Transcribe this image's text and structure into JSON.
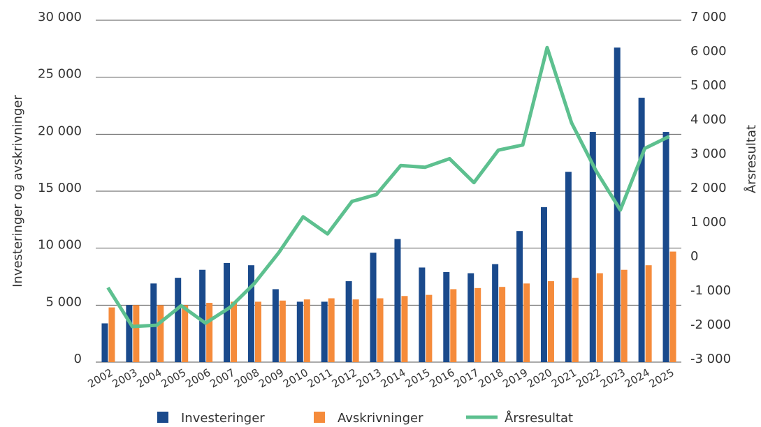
{
  "chart_data": {
    "type": "bar_line",
    "categories": [
      "2002",
      "2003",
      "2004",
      "2005",
      "2006",
      "2007",
      "2008",
      "2009",
      "2010",
      "2011",
      "2012",
      "2013",
      "2014",
      "2015",
      "2016",
      "2017",
      "2018",
      "2019",
      "2020",
      "2021",
      "2022",
      "2023",
      "2024",
      "2025"
    ],
    "series": [
      {
        "name": "Investeringer",
        "color": "#1a4a8c",
        "type": "bar",
        "values": [
          3400,
          5000,
          6900,
          7400,
          8100,
          8700,
          8500,
          6400,
          5300,
          5300,
          7100,
          9600,
          10800,
          8300,
          7900,
          7800,
          8600,
          11500,
          13600,
          16700,
          20200,
          27600,
          23200,
          20200
        ]
      },
      {
        "name": "Avskrivninger",
        "color": "#f58b3b",
        "type": "bar",
        "values": [
          4800,
          5000,
          5000,
          5000,
          5200,
          5300,
          5300,
          5400,
          5500,
          5600,
          5500,
          5600,
          5800,
          5900,
          6400,
          6500,
          6600,
          6900,
          7100,
          7400,
          7800,
          8100,
          8500,
          9700
        ]
      },
      {
        "name": "Årsresultat",
        "color": "#5dc08f",
        "type": "line",
        "axis": "y2",
        "values": [
          -820,
          -1960,
          -1920,
          -1350,
          -1860,
          -1400,
          -700,
          200,
          1250,
          750,
          1700,
          1900,
          2750,
          2700,
          2950,
          2250,
          3200,
          3350,
          6200,
          4000,
          2600,
          1450,
          3250,
          3600
        ]
      }
    ],
    "y_label": "Investeringer og avskrivninger",
    "y2_label": "Årsresultat",
    "ylim": [
      0,
      30000
    ],
    "yticks": [
      0,
      {
        "value": 5000,
        "label": "5 000"
      },
      {
        "value": 10000,
        "label": "10 000"
      },
      {
        "value": 15000,
        "label": "15 000"
      },
      {
        "value": 20000,
        "label": "20 000"
      },
      {
        "value": 25000,
        "label": "25 000"
      },
      {
        "value": 30000,
        "label": "30 000"
      }
    ],
    "y2lim": [
      -3000,
      7000
    ],
    "y2ticks": [
      {
        "value": -3000,
        "label": "-3 000"
      },
      {
        "value": -2000,
        "label": "-2 000"
      },
      {
        "value": -1000,
        "label": "-1 000"
      },
      0,
      {
        "value": 1000,
        "label": "1 000"
      },
      {
        "value": 2000,
        "label": "2 000"
      },
      {
        "value": 3000,
        "label": "3 000"
      },
      {
        "value": 4000,
        "label": "4 000"
      },
      {
        "value": 5000,
        "label": "5 000"
      },
      {
        "value": 6000,
        "label": "6 000"
      },
      {
        "value": 7000,
        "label": "7 000"
      }
    ],
    "grid": true,
    "legend": "bottom"
  }
}
